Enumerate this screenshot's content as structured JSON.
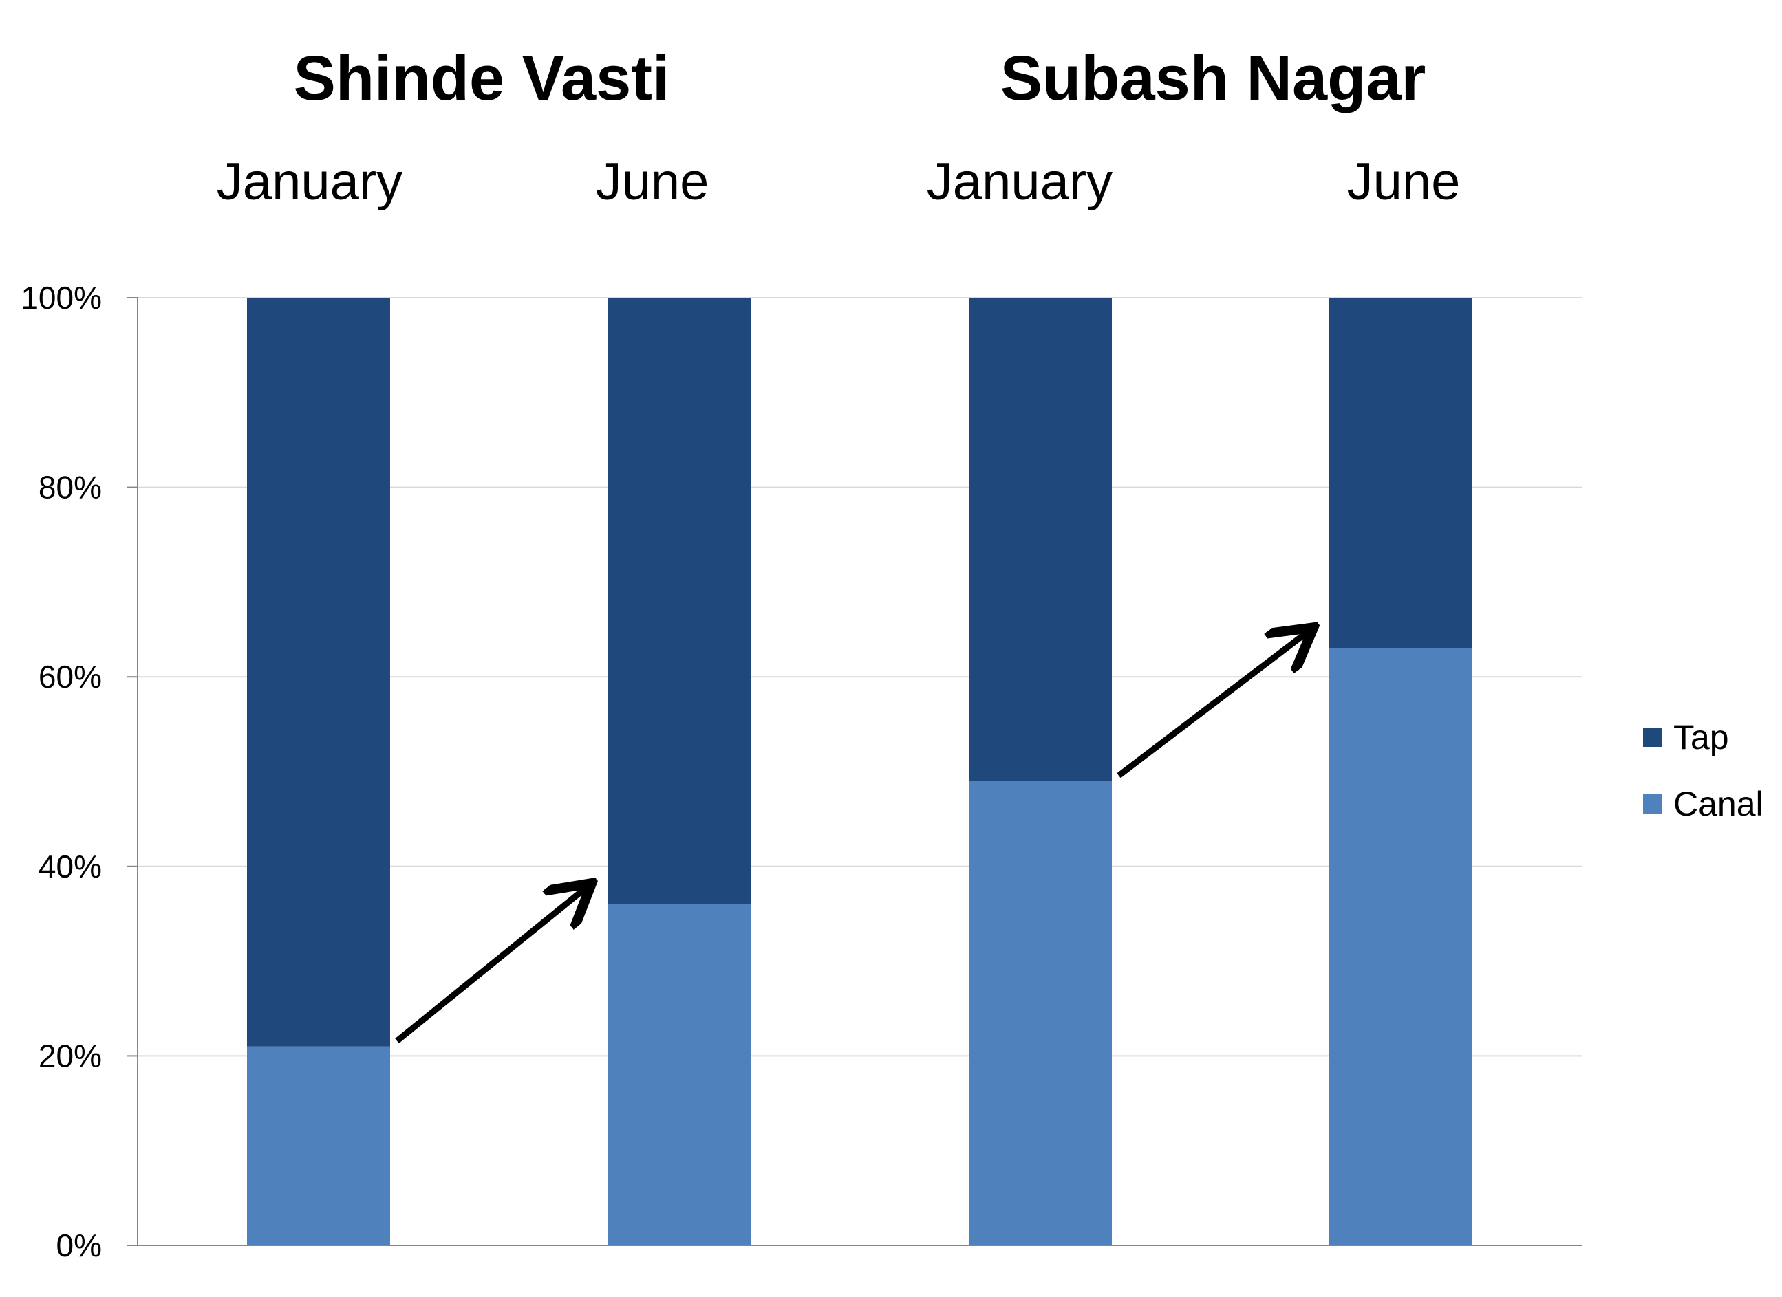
{
  "chart_data": {
    "type": "bar",
    "stacked": true,
    "percent": true,
    "groups": [
      {
        "title": "Shinde Vasti",
        "categories": [
          "January",
          "June"
        ]
      },
      {
        "title": "Subash Nagar",
        "categories": [
          "January",
          "June"
        ]
      }
    ],
    "categories": [
      "January",
      "June",
      "January",
      "June"
    ],
    "series": [
      {
        "name": "Canal",
        "color": "#4F81BD",
        "values": [
          21,
          36,
          49,
          63
        ]
      },
      {
        "name": "Tap",
        "color": "#1F497D",
        "values": [
          79,
          64,
          51,
          37
        ]
      }
    ],
    "ylim": [
      0,
      100
    ],
    "yticks": [
      "0%",
      "20%",
      "40%",
      "60%",
      "80%",
      "100%"
    ],
    "grid": true,
    "legend_position": "right",
    "legend_order": [
      "Tap",
      "Canal"
    ],
    "annotations": [
      {
        "type": "arrow",
        "from_category_index": 0,
        "to_category_index": 1
      },
      {
        "type": "arrow",
        "from_category_index": 2,
        "to_category_index": 3
      }
    ]
  }
}
